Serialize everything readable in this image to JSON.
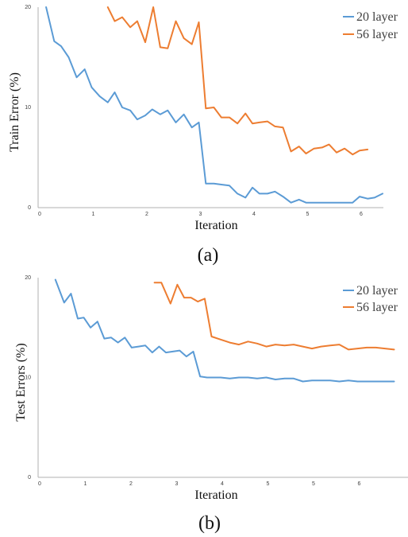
{
  "chart_data": [
    {
      "type": "line",
      "panel_label": "(a)",
      "xlabel": "Iteration",
      "ylabel": "Train Error (%)",
      "xlim": [
        0,
        6.6
      ],
      "ylim": [
        0,
        20
      ],
      "xticks": [
        0,
        1,
        2,
        3,
        4,
        5,
        6
      ],
      "yticks": [
        0,
        10,
        20
      ],
      "grid": false,
      "legend_position": "top-right",
      "series": [
        {
          "name": "20 layer",
          "color": "#5b9bd5",
          "x": [
            0.15,
            0.3,
            0.43,
            0.57,
            0.72,
            0.87,
            1.0,
            1.15,
            1.3,
            1.43,
            1.57,
            1.72,
            1.85,
            2.0,
            2.13,
            2.28,
            2.42,
            2.57,
            2.72,
            2.87,
            3.0,
            3.13,
            3.28,
            3.42,
            3.57,
            3.72,
            3.87,
            4.0,
            4.13,
            4.28,
            4.42,
            4.57,
            4.72,
            4.87,
            5.0,
            5.15,
            5.3,
            5.43,
            5.57,
            5.72,
            5.87,
            6.0,
            6.15,
            6.28,
            6.43
          ],
          "y": [
            20.0,
            16.6,
            16.1,
            15.0,
            13.0,
            13.8,
            12.0,
            11.1,
            10.5,
            11.5,
            10.0,
            9.7,
            8.8,
            9.2,
            9.8,
            9.3,
            9.7,
            8.5,
            9.3,
            8.0,
            8.5,
            2.4,
            2.4,
            2.3,
            2.2,
            1.4,
            1.0,
            2.0,
            1.4,
            1.4,
            1.6,
            1.1,
            0.5,
            0.8,
            0.5,
            0.5,
            0.5,
            0.5,
            0.5,
            0.5,
            0.5,
            1.1,
            0.9,
            1.0,
            1.4
          ]
        },
        {
          "name": "56 layer",
          "color": "#ed7d31",
          "x": [
            1.3,
            1.43,
            1.57,
            1.72,
            1.85,
            2.0,
            2.15,
            2.28,
            2.42,
            2.57,
            2.72,
            2.87,
            3.0,
            3.13,
            3.28,
            3.42,
            3.57,
            3.72,
            3.87,
            4.0,
            4.13,
            4.28,
            4.42,
            4.57,
            4.72,
            4.87,
            5.0,
            5.15,
            5.3,
            5.43,
            5.57,
            5.72,
            5.87,
            6.0,
            6.15
          ],
          "y": [
            20.0,
            18.6,
            19.0,
            18.0,
            18.6,
            16.5,
            20.0,
            16.0,
            15.9,
            18.6,
            16.9,
            16.3,
            18.5,
            9.9,
            10.0,
            9.0,
            9.0,
            8.4,
            9.4,
            8.4,
            8.5,
            8.6,
            8.1,
            8.0,
            5.6,
            6.1,
            5.4,
            5.9,
            6.0,
            6.3,
            5.5,
            5.9,
            5.3,
            5.7,
            5.8
          ]
        }
      ]
    },
    {
      "type": "line",
      "panel_label": "(b)",
      "xlabel": "Iteration",
      "ylabel": "Test Errors (%)",
      "xlim": [
        0,
        7.9
      ],
      "ylim": [
        0,
        20
      ],
      "xtick_labels": [
        "0",
        "1",
        "2",
        "3",
        "4",
        "5",
        "5",
        "6"
      ],
      "yticks": [
        0,
        10,
        20
      ],
      "grid": false,
      "legend_position": "top-right",
      "series": [
        {
          "name": "20 layer",
          "color": "#5b9bd5",
          "x": [
            0.38,
            0.57,
            0.72,
            0.87,
            1.0,
            1.15,
            1.3,
            1.45,
            1.6,
            1.75,
            1.9,
            2.05,
            2.2,
            2.35,
            2.5,
            2.65,
            2.8,
            2.95,
            3.1,
            3.25,
            3.4,
            3.55,
            3.7,
            3.85,
            4.0,
            4.2,
            4.4,
            4.6,
            4.8,
            5.0,
            5.2,
            5.4,
            5.6,
            5.8,
            6.0,
            6.2,
            6.4,
            6.6,
            6.8,
            7.0,
            7.2,
            7.4,
            7.6,
            7.8
          ],
          "y": [
            19.8,
            17.5,
            18.4,
            15.9,
            16.0,
            15.0,
            15.6,
            13.9,
            14.0,
            13.5,
            14.0,
            13.0,
            13.1,
            13.2,
            12.5,
            13.1,
            12.5,
            12.6,
            12.7,
            12.1,
            12.6,
            10.1,
            10.0,
            10.0,
            10.0,
            9.9,
            10.0,
            10.0,
            9.9,
            10.0,
            9.8,
            9.9,
            9.9,
            9.6,
            9.7,
            9.7,
            9.7,
            9.6,
            9.7,
            9.6,
            9.6,
            9.6,
            9.6,
            9.6
          ]
        },
        {
          "name": "56 layer",
          "color": "#ed7d31",
          "x": [
            2.55,
            2.7,
            2.9,
            3.05,
            3.2,
            3.35,
            3.5,
            3.65,
            3.8,
            4.0,
            4.2,
            4.4,
            4.6,
            4.8,
            5.0,
            5.2,
            5.4,
            5.6,
            5.8,
            6.0,
            6.2,
            6.4,
            6.6,
            6.8,
            7.0,
            7.2,
            7.4,
            7.6,
            7.8
          ],
          "y": [
            19.5,
            19.5,
            17.4,
            19.3,
            18.0,
            18.0,
            17.6,
            17.9,
            14.1,
            13.8,
            13.5,
            13.3,
            13.6,
            13.4,
            13.1,
            13.3,
            13.2,
            13.3,
            13.1,
            12.9,
            13.1,
            13.2,
            13.3,
            12.8,
            12.9,
            13.0,
            13.0,
            12.9,
            12.8
          ]
        }
      ]
    }
  ]
}
